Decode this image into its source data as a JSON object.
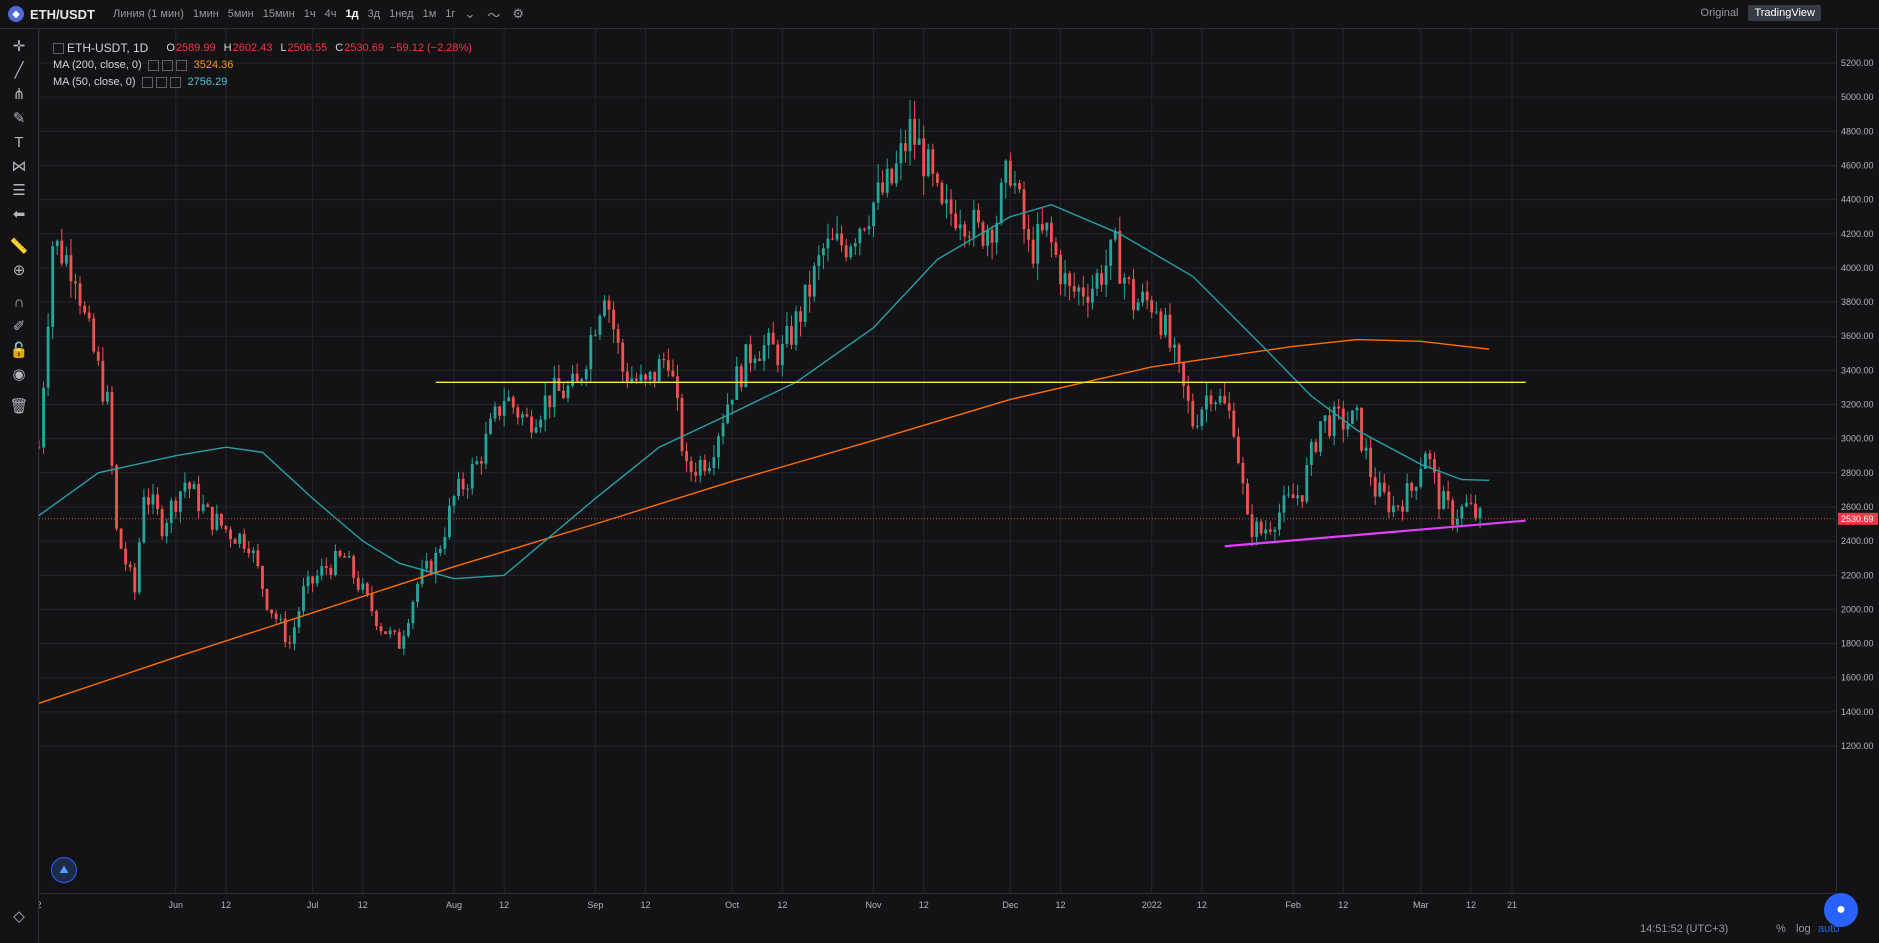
{
  "topbar": {
    "symbol": "ETH/USDT",
    "intervals": [
      "Линия (1 мин)",
      "1мин",
      "5мин",
      "15мин",
      "1ч",
      "4ч",
      "1д",
      "3д",
      "1нед",
      "1м",
      "1г"
    ],
    "active_interval": "1д",
    "original_label": "Original",
    "tradingview_label": "TradingView"
  },
  "legend": {
    "symbol": "ETH-USDT, 1D",
    "o_label": "O",
    "o": "2589.99",
    "h_label": "H",
    "h": "2602.43",
    "l_label": "L",
    "l": "2506.55",
    "c_label": "C",
    "c": "2530.69",
    "change": "−59.12 (−2.28%)",
    "ma200_label": "MA (200, close, 0)",
    "ma200_value": "3524.36",
    "ma50_label": "MA (50, close, 0)",
    "ma50_value": "2756.29"
  },
  "status": {
    "clock": "14:51:52 (UTC+3)",
    "percent": "%",
    "log": "log",
    "auto": "auto"
  },
  "colors": {
    "up": "#26a69a",
    "down": "#ef5350",
    "ma200": "#ff6d00",
    "ma50": "#26a0a8",
    "hline": "#ffeb3b",
    "trendline": "#e040fb",
    "last_price_bg": "#f23645"
  },
  "chart_data": {
    "type": "candlestick",
    "ylim": [
      1100,
      5300
    ],
    "yticks": [
      1200,
      1400,
      1600,
      1800,
      2000,
      2200,
      2400,
      2600,
      2800,
      3000,
      3200,
      3400,
      3600,
      3800,
      4000,
      4200,
      4400,
      4600,
      4800,
      5000,
      5200
    ],
    "ytick_labels": [
      "1200.00",
      "1400.00",
      "1600.00",
      "1800.00",
      "2000.00",
      "2200.00",
      "2400.00",
      "2600.00",
      "2800.00",
      "3000.00",
      "3200.00",
      "3400.00",
      "3600.00",
      "3800.00",
      "4000.00",
      "4200.00",
      "4400.00",
      "4600.00",
      "4800.00",
      "5000.00",
      "5200.00"
    ],
    "x_start": "2021-05-02",
    "x_end": "2022-03-21",
    "xtick_dates": [
      "2021-05-02",
      "2021-06-01",
      "2021-06-12",
      "2021-07-01",
      "2021-07-12",
      "2021-08-01",
      "2021-08-12",
      "2021-09-01",
      "2021-09-12",
      "2021-10-01",
      "2021-10-12",
      "2021-11-01",
      "2021-11-12",
      "2021-12-01",
      "2021-12-12",
      "2022-01-01",
      "2022-01-12",
      "2022-02-01",
      "2022-02-12",
      "2022-03-01",
      "2022-03-12",
      "2022-03-21"
    ],
    "xtick_labels": [
      "2",
      "Jun",
      "12",
      "Jul",
      "12",
      "Aug",
      "12",
      "Sep",
      "12",
      "Oct",
      "12",
      "Nov",
      "12",
      "Dec",
      "12",
      "2022",
      "12",
      "Feb",
      "12",
      "Mar",
      "12",
      "21"
    ],
    "close_path": [
      [
        "2021-05-02",
        2950
      ],
      [
        "2021-05-05",
        4150
      ],
      [
        "2021-05-10",
        4000
      ],
      [
        "2021-05-12",
        3700
      ],
      [
        "2021-05-14",
        3500
      ],
      [
        "2021-05-17",
        3200
      ],
      [
        "2021-05-19",
        2450
      ],
      [
        "2021-05-23",
        2100
      ],
      [
        "2021-05-25",
        2700
      ],
      [
        "2021-05-29",
        2500
      ],
      [
        "2021-06-03",
        2750
      ],
      [
        "2021-06-08",
        2550
      ],
      [
        "2021-06-13",
        2450
      ],
      [
        "2021-06-17",
        2400
      ],
      [
        "2021-06-21",
        2050
      ],
      [
        "2021-06-26",
        1800
      ],
      [
        "2021-06-29",
        2100
      ],
      [
        "2021-07-04",
        2250
      ],
      [
        "2021-07-08",
        2300
      ],
      [
        "2021-07-12",
        2100
      ],
      [
        "2021-07-16",
        1900
      ],
      [
        "2021-07-20",
        1800
      ],
      [
        "2021-07-24",
        2150
      ],
      [
        "2021-07-28",
        2300
      ],
      [
        "2021-08-01",
        2650
      ],
      [
        "2021-08-06",
        2850
      ],
      [
        "2021-08-12",
        3250
      ],
      [
        "2021-08-17",
        3100
      ],
      [
        "2021-08-22",
        3250
      ],
      [
        "2021-08-28",
        3300
      ],
      [
        "2021-09-03",
        3900
      ],
      [
        "2021-09-07",
        3400
      ],
      [
        "2021-09-12",
        3300
      ],
      [
        "2021-09-17",
        3500
      ],
      [
        "2021-09-21",
        2800
      ],
      [
        "2021-09-26",
        2900
      ],
      [
        "2021-10-01",
        3300
      ],
      [
        "2021-10-06",
        3550
      ],
      [
        "2021-10-12",
        3500
      ],
      [
        "2021-10-17",
        3800
      ],
      [
        "2021-10-21",
        4100
      ],
      [
        "2021-10-26",
        4150
      ],
      [
        "2021-10-31",
        4350
      ],
      [
        "2021-11-05",
        4500
      ],
      [
        "2021-11-09",
        4800
      ],
      [
        "2021-11-12",
        4650
      ],
      [
        "2021-11-16",
        4300
      ],
      [
        "2021-11-20",
        4350
      ],
      [
        "2021-11-24",
        4200
      ],
      [
        "2021-11-28",
        4300
      ],
      [
        "2021-12-01",
        4600
      ],
      [
        "2021-12-05",
        4100
      ],
      [
        "2021-12-09",
        4200
      ],
      [
        "2021-12-14",
        3850
      ],
      [
        "2021-12-19",
        3900
      ],
      [
        "2021-12-24",
        4100
      ],
      [
        "2021-12-28",
        3800
      ],
      [
        "2022-01-02",
        3800
      ],
      [
        "2022-01-06",
        3450
      ],
      [
        "2022-01-10",
        3100
      ],
      [
        "2022-01-14",
        3300
      ],
      [
        "2022-01-19",
        3100
      ],
      [
        "2022-01-22",
        2500
      ],
      [
        "2022-01-25",
        2450
      ],
      [
        "2022-01-30",
        2600
      ],
      [
        "2022-02-03",
        2700
      ],
      [
        "2022-02-07",
        3100
      ],
      [
        "2022-02-11",
        3100
      ],
      [
        "2022-02-15",
        3100
      ],
      [
        "2022-02-19",
        2700
      ],
      [
        "2022-02-23",
        2600
      ],
      [
        "2022-02-27",
        2700
      ],
      [
        "2022-03-02",
        2950
      ],
      [
        "2022-03-05",
        2650
      ],
      [
        "2022-03-08",
        2550
      ],
      [
        "2022-03-11",
        2600
      ],
      [
        "2022-03-14",
        2530
      ]
    ],
    "ma200_path": [
      [
        "2021-05-02",
        1450
      ],
      [
        "2021-06-01",
        1720
      ],
      [
        "2021-07-01",
        1980
      ],
      [
        "2021-08-01",
        2250
      ],
      [
        "2021-09-01",
        2500
      ],
      [
        "2021-10-01",
        2750
      ],
      [
        "2021-11-01",
        2990
      ],
      [
        "2021-12-01",
        3230
      ],
      [
        "2022-01-01",
        3420
      ],
      [
        "2022-02-01",
        3540
      ],
      [
        "2022-02-15",
        3580
      ],
      [
        "2022-03-01",
        3570
      ],
      [
        "2022-03-16",
        3524
      ]
    ],
    "ma50_path": [
      [
        "2021-05-02",
        2550
      ],
      [
        "2021-05-15",
        2800
      ],
      [
        "2021-06-01",
        2900
      ],
      [
        "2021-06-12",
        2950
      ],
      [
        "2021-06-20",
        2920
      ],
      [
        "2021-07-01",
        2650
      ],
      [
        "2021-07-12",
        2400
      ],
      [
        "2021-07-20",
        2270
      ],
      [
        "2021-08-01",
        2180
      ],
      [
        "2021-08-12",
        2200
      ],
      [
        "2021-09-01",
        2650
      ],
      [
        "2021-09-15",
        2950
      ],
      [
        "2021-10-01",
        3150
      ],
      [
        "2021-10-15",
        3330
      ],
      [
        "2021-11-01",
        3650
      ],
      [
        "2021-11-15",
        4050
      ],
      [
        "2021-12-01",
        4300
      ],
      [
        "2021-12-10",
        4370
      ],
      [
        "2021-12-25",
        4200
      ],
      [
        "2022-01-10",
        3950
      ],
      [
        "2022-01-25",
        3550
      ],
      [
        "2022-02-05",
        3250
      ],
      [
        "2022-02-15",
        3050
      ],
      [
        "2022-03-01",
        2850
      ],
      [
        "2022-03-10",
        2760
      ],
      [
        "2022-03-16",
        2756
      ]
    ],
    "hline_price": 3330,
    "hline_start": "2021-07-28",
    "hline_end": "2022-03-24",
    "trendline": [
      [
        "2022-01-17",
        2370
      ],
      [
        "2022-03-24",
        2520
      ]
    ],
    "last_price": "2530.69",
    "last_price_value": 2530.69
  }
}
